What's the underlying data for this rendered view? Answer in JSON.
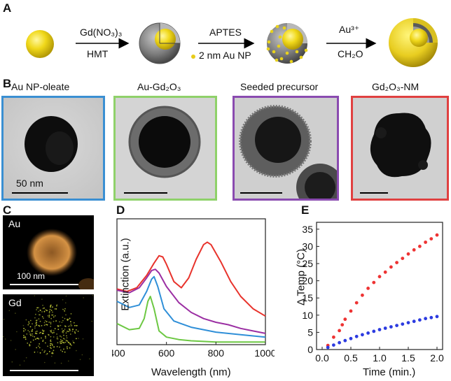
{
  "figure": {
    "panel_a": {
      "letter": "A",
      "step1_top": "Gd(NO₃)₃",
      "step1_bottom": "HMT",
      "step2_top": "APTES",
      "step2_bottom": "2 nm Au NP",
      "step3_top": "Au³⁺",
      "step3_bottom": "CH₂O"
    },
    "panel_b": {
      "letter": "B",
      "images": [
        {
          "title": "Au NP-oleate",
          "border": "#3a8fd2",
          "scale_label": "50 nm"
        },
        {
          "title": "Au-Gd₂O₃",
          "border": "#8fd16a",
          "scale_label": ""
        },
        {
          "title": "Seeded precursor",
          "border": "#8a4bb0",
          "scale_label": ""
        },
        {
          "title": "Gd₂O₃-NM",
          "border": "#e04040",
          "scale_label": ""
        }
      ]
    },
    "panel_c": {
      "letter": "C",
      "maps": [
        {
          "element": "Au",
          "scale_label": "100 nm",
          "color": "#d98c3a"
        },
        {
          "element": "Gd",
          "scale_label": "",
          "color": "#c8d23a"
        }
      ]
    }
  },
  "chart_data": [
    {
      "id": "D",
      "type": "line",
      "letter": "D",
      "xlabel": "Wavelength (nm)",
      "ylabel": "Extinction (a.u.)",
      "xlim": [
        400,
        1000
      ],
      "xticks": [
        400,
        600,
        800,
        1000
      ],
      "series": [
        {
          "name": "Gd₂O₃-NM",
          "color": "#e8332c",
          "x": [
            400,
            440,
            480,
            520,
            550,
            570,
            585,
            600,
            630,
            660,
            690,
            720,
            750,
            765,
            780,
            820,
            860,
            900,
            950,
            1000
          ],
          "y": [
            0.44,
            0.42,
            0.45,
            0.55,
            0.65,
            0.71,
            0.7,
            0.64,
            0.5,
            0.45,
            0.53,
            0.68,
            0.8,
            0.82,
            0.8,
            0.66,
            0.5,
            0.38,
            0.28,
            0.22
          ]
        },
        {
          "name": "Seeded precursor",
          "color": "#9b2fa3",
          "x": [
            400,
            450,
            490,
            520,
            540,
            555,
            570,
            600,
            650,
            700,
            750,
            800,
            850,
            900,
            950,
            1000
          ],
          "y": [
            0.43,
            0.41,
            0.45,
            0.53,
            0.59,
            0.6,
            0.57,
            0.46,
            0.33,
            0.25,
            0.2,
            0.17,
            0.15,
            0.12,
            0.1,
            0.08
          ]
        },
        {
          "name": "Au-Gd₂O₃",
          "color": "#2f8fd8",
          "x": [
            400,
            450,
            490,
            520,
            540,
            550,
            565,
            590,
            630,
            700,
            800,
            900,
            1000
          ],
          "y": [
            0.34,
            0.29,
            0.31,
            0.42,
            0.52,
            0.54,
            0.46,
            0.28,
            0.18,
            0.13,
            0.09,
            0.07,
            0.05
          ]
        },
        {
          "name": "Au NP-oleate",
          "color": "#6dc843",
          "x": [
            400,
            450,
            490,
            510,
            525,
            535,
            550,
            570,
            600,
            650,
            700,
            800,
            900,
            1000
          ],
          "y": [
            0.16,
            0.11,
            0.12,
            0.2,
            0.34,
            0.38,
            0.28,
            0.1,
            0.05,
            0.03,
            0.02,
            0.01,
            0.01,
            0.01
          ]
        }
      ]
    },
    {
      "id": "E",
      "type": "scatter",
      "letter": "E",
      "xlabel": "Time (min.)",
      "ylabel": "Δ Temp (°C)",
      "xlim": [
        0.0,
        2.0
      ],
      "ylim": [
        0,
        37
      ],
      "xticks": [
        "0.0",
        "0.5",
        "1.0",
        "1.5",
        "2.0"
      ],
      "yticks": [
        "0",
        "5",
        "10",
        "15",
        "20",
        "25",
        "30",
        "35"
      ],
      "series": [
        {
          "name": "Gd₂O₃-NM",
          "color": "#ee3333",
          "x": [
            0.1,
            0.2,
            0.3,
            0.35,
            0.4,
            0.5,
            0.6,
            0.7,
            0.8,
            0.9,
            1.0,
            1.1,
            1.2,
            1.3,
            1.4,
            1.5,
            1.6,
            1.7,
            1.8,
            1.9,
            2.0
          ],
          "y": [
            1.2,
            3.6,
            5.5,
            7.2,
            8.8,
            11.2,
            13.6,
            15.8,
            17.8,
            19.5,
            21.2,
            22.5,
            24.0,
            25.3,
            26.5,
            27.8,
            29.0,
            30.0,
            31.2,
            32.2,
            33.3
          ]
        },
        {
          "name": "Au NP-oleate",
          "color": "#2c3be0",
          "x": [
            0.1,
            0.2,
            0.3,
            0.4,
            0.5,
            0.6,
            0.7,
            0.8,
            0.9,
            1.0,
            1.1,
            1.2,
            1.3,
            1.4,
            1.5,
            1.6,
            1.7,
            1.8,
            1.9,
            2.0
          ],
          "y": [
            0.6,
            1.3,
            2.0,
            2.6,
            3.2,
            3.8,
            4.3,
            4.8,
            5.3,
            5.8,
            6.2,
            6.6,
            7.0,
            7.4,
            7.8,
            8.2,
            8.6,
            9.0,
            9.3,
            9.6
          ]
        }
      ]
    }
  ]
}
